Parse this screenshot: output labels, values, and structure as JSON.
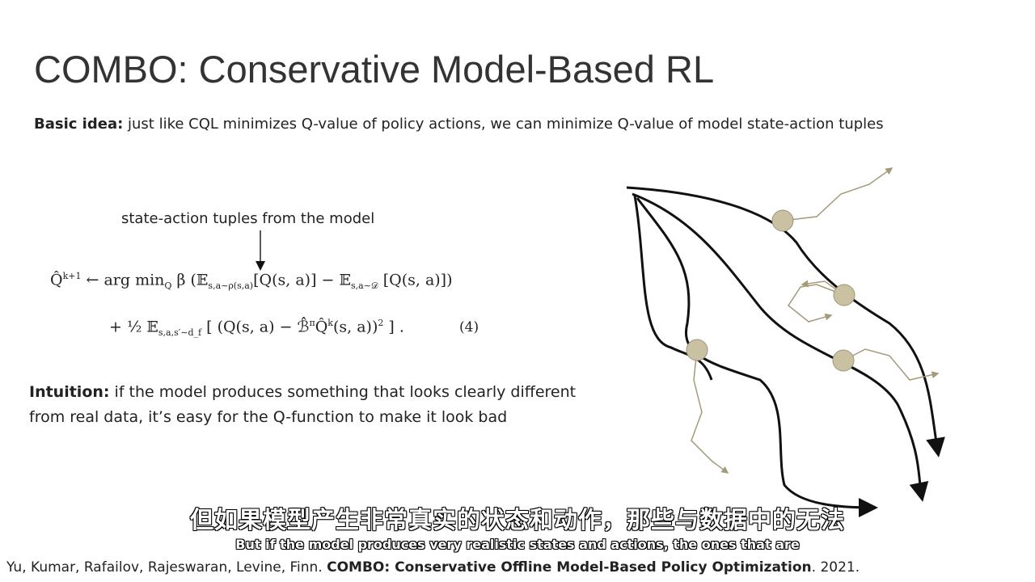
{
  "title": "COMBO: Conservative Model-Based RL",
  "basic_idea": {
    "label": "Basic idea:",
    "text": " just like CQL minimizes Q-value of policy actions, we can minimize Q-value of model state-action tuples"
  },
  "annotation": "state-action tuples from the model",
  "equation": {
    "line1": [
      {
        "t": "Q̂",
        "s": "normal"
      },
      {
        "t": "k+1",
        "s": "sup"
      },
      {
        "t": " ← arg min",
        "s": "normal"
      },
      {
        "t": "Q",
        "s": "sub"
      },
      {
        "t": " β (𝔼",
        "s": "normal"
      },
      {
        "t": "s,a∼ρ(s,a)",
        "s": "sub"
      },
      {
        "t": "[Q(s, a)] − 𝔼",
        "s": "normal"
      },
      {
        "t": "s,a∼𝒟",
        "s": "sub"
      },
      {
        "t": " [Q(s, a)])",
        "s": "normal"
      }
    ],
    "line2": [
      {
        "t": "+ ½ 𝔼",
        "s": "normal"
      },
      {
        "t": "s,a,s′∼d_f",
        "s": "sub"
      },
      {
        "t": " [ (Q(s, a) − ℬ̂",
        "s": "normal"
      },
      {
        "t": "π",
        "s": "sup"
      },
      {
        "t": "Q̂",
        "s": "normal"
      },
      {
        "t": "k",
        "s": "sup"
      },
      {
        "t": "(s, a))",
        "s": "normal"
      },
      {
        "t": "2",
        "s": "sup"
      },
      {
        "t": " ] .",
        "s": "normal"
      }
    ],
    "number": "(4)"
  },
  "intuition": {
    "label": "Intuition:",
    "lines": [
      " if the model produces something that looks clearly different",
      "from real data, it’s easy for the Q-function to make it look bad"
    ]
  },
  "subtitle_zh": "但如果模型产生非常真实的状态和动作，那些与数据中的无法",
  "subtitle_en": "But if the model produces very realistic states and actions, the ones that are",
  "citation": {
    "authors": "Yu, Kumar, Rafailov, Rajeswaran, Levine, Finn. ",
    "title": "COMBO: Conservative Offline Model-Based Policy Optimization",
    "after": ". 2021."
  }
}
